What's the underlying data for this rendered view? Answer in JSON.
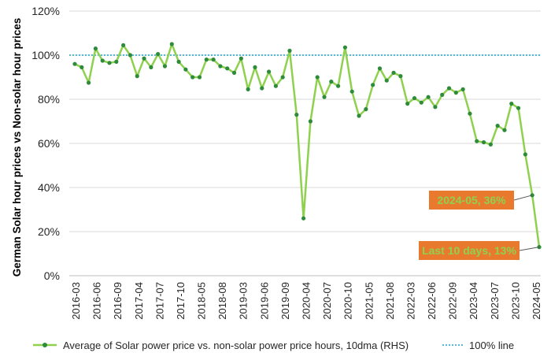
{
  "chart_data": {
    "type": "line",
    "title": "",
    "ylabel": "German Solar hour prices vs Non-solar hour prices",
    "xlabel": "",
    "ylim": [
      0,
      120
    ],
    "yticks": [
      0,
      20,
      40,
      60,
      80,
      100,
      120
    ],
    "ytick_labels": [
      "0%",
      "20%",
      "40%",
      "60%",
      "80%",
      "100%",
      "120%"
    ],
    "grid": "horizontal",
    "legend_position": "bottom",
    "x_tick_labels": [
      "2016-03",
      "2016-06",
      "2016-09",
      "2017-04",
      "2017-07",
      "2017-10",
      "2018-05",
      "2018-08",
      "2019-03",
      "2019-06",
      "2019-09",
      "2020-04",
      "2020-07",
      "2020-10",
      "2021-05",
      "2021-08",
      "2022-03",
      "2022-06",
      "2022-09",
      "2023-04",
      "2023-07",
      "2023-10",
      "2024-05"
    ],
    "series": [
      {
        "name": "Average of Solar power price vs. non-solar power price hours, 10dma (RHS)",
        "color": "#7cc243",
        "values": [
          96,
          94.5,
          87.5,
          103,
          97.5,
          96.5,
          97,
          104.5,
          100,
          90.5,
          98.5,
          94.5,
          100.5,
          95,
          105,
          97,
          93.5,
          90,
          90,
          98,
          98,
          95,
          94,
          92,
          98.5,
          84.5,
          94.5,
          85,
          92.5,
          86,
          90,
          102,
          73,
          26,
          70,
          90,
          81,
          88,
          86,
          103.5,
          83.5,
          72.5,
          75.5,
          86.5,
          94,
          88.5,
          92,
          90.5,
          78,
          80.5,
          78.5,
          81,
          76.5,
          82,
          85,
          83,
          84.5,
          73.5,
          61,
          60.5,
          59.5,
          68,
          66,
          78,
          76,
          55,
          36.5,
          13
        ]
      },
      {
        "name": "100% line",
        "color": "#1f9fbf",
        "value": 100
      }
    ],
    "annotations": [
      {
        "label": "2024-05, 36%",
        "point_index": 66
      },
      {
        "label": "Last 10 days, 13%",
        "point_index": 67
      }
    ]
  }
}
